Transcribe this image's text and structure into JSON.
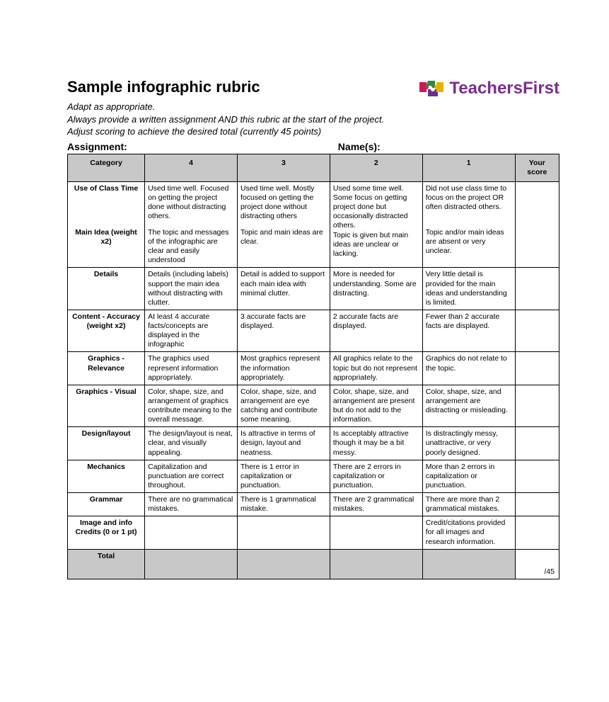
{
  "header": {
    "title": "Sample infographic rubric",
    "subtitle_lines": [
      "Adapt as appropriate.",
      "Always provide a written assignment AND this rubric at the start of the project.",
      "Adjust scoring to achieve the desired total (currently 45 points)"
    ],
    "assignment_label": "Assignment:",
    "names_label": "Name(s):"
  },
  "logo": {
    "text": "TeachersFirst",
    "color": "#7b2e8e",
    "puzzle_colors": [
      "#d4145a",
      "#2e8b3d",
      "#6a2e8e",
      "#e0b400"
    ]
  },
  "table": {
    "columns": [
      "Category",
      "4",
      "3",
      "2",
      "1",
      "Your score"
    ],
    "total_label": "Total",
    "total_score": "/45",
    "groups": [
      {
        "categories": [
          {
            "label": "Use of Class Time",
            "cells": [
              "Used time well. Focused on getting the project done without distracting others.",
              "Used time well. Mostly focused on getting the project done without distracting others",
              "Used some time well. Some focus on getting project done but occasionally distracted others.",
              "Did not use class time to focus on the project OR often distracted others."
            ]
          },
          {
            "label": "Main Idea (weight x2)",
            "cells": [
              "The topic and messages of the infographic are clear and easily understood",
              "Topic and main ideas are clear.",
              "Topic is given but main ideas are unclear or lacking.",
              "Topic and/or main ideas are absent or very unclear."
            ]
          }
        ]
      },
      {
        "categories": [
          {
            "label": "Details",
            "cells": [
              "Details (including labels) support the main idea without distracting with clutter.",
              "Detail is added to support each main idea with minimal clutter.",
              "More is needed for understanding. Some are distracting.",
              "Very little detail is provided for the main ideas and understanding is limited."
            ]
          }
        ]
      },
      {
        "categories": [
          {
            "label": "Content - Accuracy (weight x2)",
            "cells": [
              "At least 4 accurate facts/concepts are displayed in the infographic",
              "3 accurate facts are displayed.",
              "2 accurate facts are displayed.",
              "Fewer than 2 accurate facts are displayed."
            ]
          }
        ]
      },
      {
        "categories": [
          {
            "label": "Graphics - Relevance",
            "cells": [
              "The graphics used represent information appropriately.",
              "Most graphics represent the information appropriately.",
              "All graphics relate to the topic but do not represent appropriately.",
              "Graphics do not relate to the topic."
            ]
          }
        ]
      },
      {
        "categories": [
          {
            "label": "Graphics - Visual",
            "cells": [
              "Color, shape, size, and arrangement of graphics contribute meaning to the overall message.",
              "Color, shape, size, and arrangement are eye catching and contribute some meaning.",
              "Color, shape, size, and arrangement are present but do not add to the information.",
              "Color, shape, size, and arrangement are distracting or misleading."
            ]
          }
        ]
      },
      {
        "categories": [
          {
            "label": "Design/layout",
            "cells": [
              "The design/layout is neat, clear, and visually appealing.",
              "Is attractive in terms of design, layout and neatness.",
              "Is acceptably attractive though it may be a bit messy.",
              "Is distractingly messy, unattractive, or very poorly designed."
            ]
          }
        ]
      },
      {
        "categories": [
          {
            "label": "Mechanics",
            "cells": [
              "Capitalization and punctuation are correct throughout.",
              "There is 1 error in capitalization or punctuation.",
              "There are 2 errors in capitalization or punctuation.",
              "More than 2 errors in capitalization or punctuation."
            ]
          }
        ]
      },
      {
        "categories": [
          {
            "label": "Grammar",
            "cells": [
              "There are no grammatical mistakes.",
              "There is 1 grammatical mistake.",
              "There are 2 grammatical mistakes.",
              "There are more than 2 grammatical mistakes."
            ]
          }
        ]
      },
      {
        "categories": [
          {
            "label": "Image and info Credits (0 or 1 pt)",
            "cells": [
              "",
              "",
              "",
              "Credit/citations provided for all images and research information."
            ]
          }
        ]
      }
    ]
  },
  "colors": {
    "header_bg": "#c8c8c8",
    "border": "#000000",
    "text": "#000000",
    "page_bg": "#ffffff"
  }
}
